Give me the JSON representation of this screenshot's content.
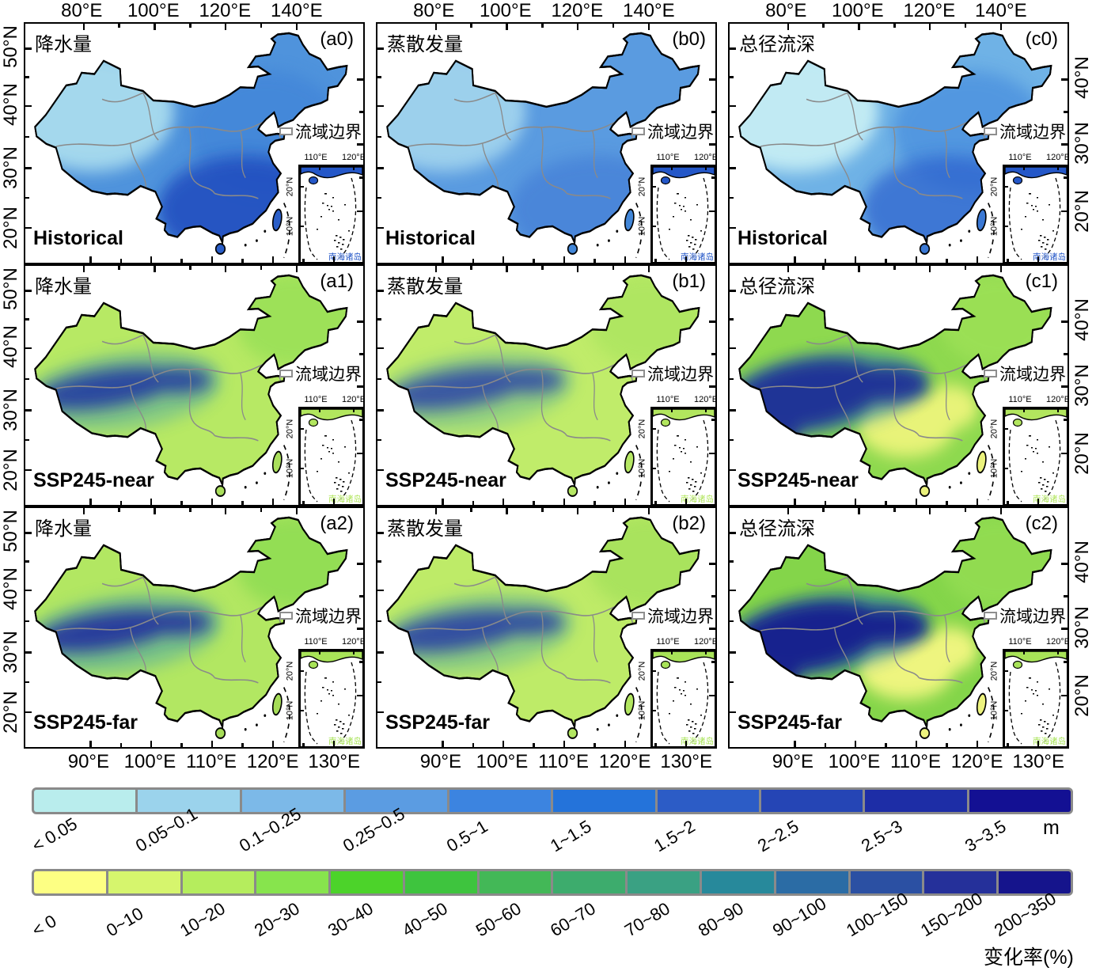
{
  "axes": {
    "top_ticks": [
      "80°E",
      "100°E",
      "120°E",
      "140°E"
    ],
    "bottom_ticks": [
      "90°E",
      "100°E",
      "110°E",
      "120°E",
      "130°E"
    ],
    "left_ticks": [
      "50°N",
      "40°N",
      "30°N",
      "20°N"
    ],
    "right_ticks": [
      "40°N",
      "30°N",
      "20°N"
    ]
  },
  "columns": [
    {
      "variable": "降水量",
      "ids": [
        "(a0)",
        "(a1)",
        "(a2)"
      ]
    },
    {
      "variable": "蒸散发量",
      "ids": [
        "(b0)",
        "(b1)",
        "(b2)"
      ]
    },
    {
      "variable": "总径流深",
      "ids": [
        "(c0)",
        "(c1)",
        "(c2)"
      ]
    }
  ],
  "rows": [
    {
      "scenario": "Historical",
      "inset_coast_color": "#2457c8"
    },
    {
      "scenario": "SSP245-near",
      "inset_coast_color": "#b2e65e"
    },
    {
      "scenario": "SSP245-far",
      "inset_coast_color": "#a8e358"
    }
  ],
  "legend_label": "流域边界",
  "inset": {
    "top_ticks": [
      "110°E",
      "120°E"
    ],
    "left_ticks": [
      "20°N",
      "10°N"
    ],
    "caption": "南海诸岛"
  },
  "colorbar_m": {
    "unit": "m",
    "segments": [
      {
        "label": "< 0.05",
        "color": "#b9eded"
      },
      {
        "label": "0.05~0.1",
        "color": "#9bd3ec"
      },
      {
        "label": "0.1~0.25",
        "color": "#7cb9e8"
      },
      {
        "label": "0.25~0.5",
        "color": "#5b9ce2"
      },
      {
        "label": "0.5~1",
        "color": "#3c84e0"
      },
      {
        "label": "1~1.5",
        "color": "#2473da"
      },
      {
        "label": "1.5~2",
        "color": "#2c5cc6"
      },
      {
        "label": "2~2.5",
        "color": "#2545b5"
      },
      {
        "label": "2.5~3",
        "color": "#1d2da6"
      },
      {
        "label": "3~3.5",
        "color": "#131093"
      }
    ]
  },
  "colorbar_pct": {
    "unit": "变化率(%)",
    "segments": [
      {
        "label": "< 0",
        "color": "#fdff83"
      },
      {
        "label": "0~10",
        "color": "#d6f56d"
      },
      {
        "label": "10~20",
        "color": "#b5ed5d"
      },
      {
        "label": "20~30",
        "color": "#87e44d"
      },
      {
        "label": "30~40",
        "color": "#4cd32a"
      },
      {
        "label": "40~50",
        "color": "#3ec43e"
      },
      {
        "label": "50~60",
        "color": "#43b857"
      },
      {
        "label": "60~70",
        "color": "#3dac6d"
      },
      {
        "label": "70~80",
        "color": "#3aa183"
      },
      {
        "label": "80~90",
        "color": "#27899b"
      },
      {
        "label": "90~100",
        "color": "#2b6ca5"
      },
      {
        "label": "100~150",
        "color": "#2b50a3"
      },
      {
        "label": "150~200",
        "color": "#25309a"
      },
      {
        "label": "200~350",
        "color": "#15148c"
      }
    ]
  },
  "map_palettes": {
    "a0": {
      "base": "#4f93dc",
      "island": "#2a5ec8",
      "overlays": [
        [
          "nw-light",
          "#a9dcee",
          0.95
        ],
        [
          "e-mid",
          "#3a7ed6",
          0.5
        ],
        [
          "se-dark",
          "#1e46bc",
          0.8
        ]
      ]
    },
    "b0": {
      "base": "#5a9be0",
      "island": "#4186d8",
      "overlays": [
        [
          "nw-light",
          "#a4d6ee",
          0.9
        ],
        [
          "se-dark",
          "#3a72d2",
          0.5
        ]
      ]
    },
    "c0": {
      "base": "#6fb2e6",
      "island": "#3a78d4",
      "overlays": [
        [
          "nw-light",
          "#c6eef4",
          0.95
        ],
        [
          "e-mid",
          "#4186dc",
          0.6
        ],
        [
          "se-dark",
          "#2a5ecc",
          0.7
        ]
      ]
    },
    "a1": {
      "base": "#b7e964",
      "island": "#aadf5c",
      "overlays": [
        [
          "ne-green",
          "#96df56",
          0.8
        ],
        [
          "teal",
          "#3f9fae",
          0.45
        ],
        [
          "band",
          "#243aa2",
          0.9
        ]
      ]
    },
    "b1": {
      "base": "#c0ec6a",
      "island": "#b6e864",
      "overlays": [
        [
          "ne-green",
          "#a9e45e",
          0.7
        ],
        [
          "teal",
          "#44a4a8",
          0.35
        ],
        [
          "band",
          "#2a42a8",
          0.85
        ]
      ]
    },
    "c1": {
      "base": "#8ed94f",
      "island": "#ebf27c",
      "overlays": [
        [
          "ne-green",
          "#a0e258",
          0.7
        ],
        [
          "yellow",
          "#f2f67e",
          0.9
        ],
        [
          "teal",
          "#2f8fa8",
          0.6
        ],
        [
          "band-big",
          "#1c2b98",
          0.92
        ]
      ]
    },
    "a2": {
      "base": "#b2e762",
      "island": "#a6dd58",
      "overlays": [
        [
          "ne-green",
          "#8edc52",
          0.85
        ],
        [
          "teal",
          "#3f9fae",
          0.5
        ],
        [
          "band",
          "#20339e",
          0.92
        ]
      ]
    },
    "b2": {
      "base": "#beeb68",
      "island": "#b2e660",
      "overlays": [
        [
          "ne-green",
          "#a2e05a",
          0.75
        ],
        [
          "teal",
          "#44a4a8",
          0.4
        ],
        [
          "band",
          "#273ea5",
          0.88
        ]
      ]
    },
    "c2": {
      "base": "#84d54a",
      "island": "#edf37e",
      "overlays": [
        [
          "ne-green",
          "#9ae056",
          0.6
        ],
        [
          "yellow",
          "#f4f782",
          0.95
        ],
        [
          "teal",
          "#2c8aa6",
          0.65
        ],
        [
          "band-big",
          "#161f8f",
          0.95
        ]
      ]
    }
  }
}
